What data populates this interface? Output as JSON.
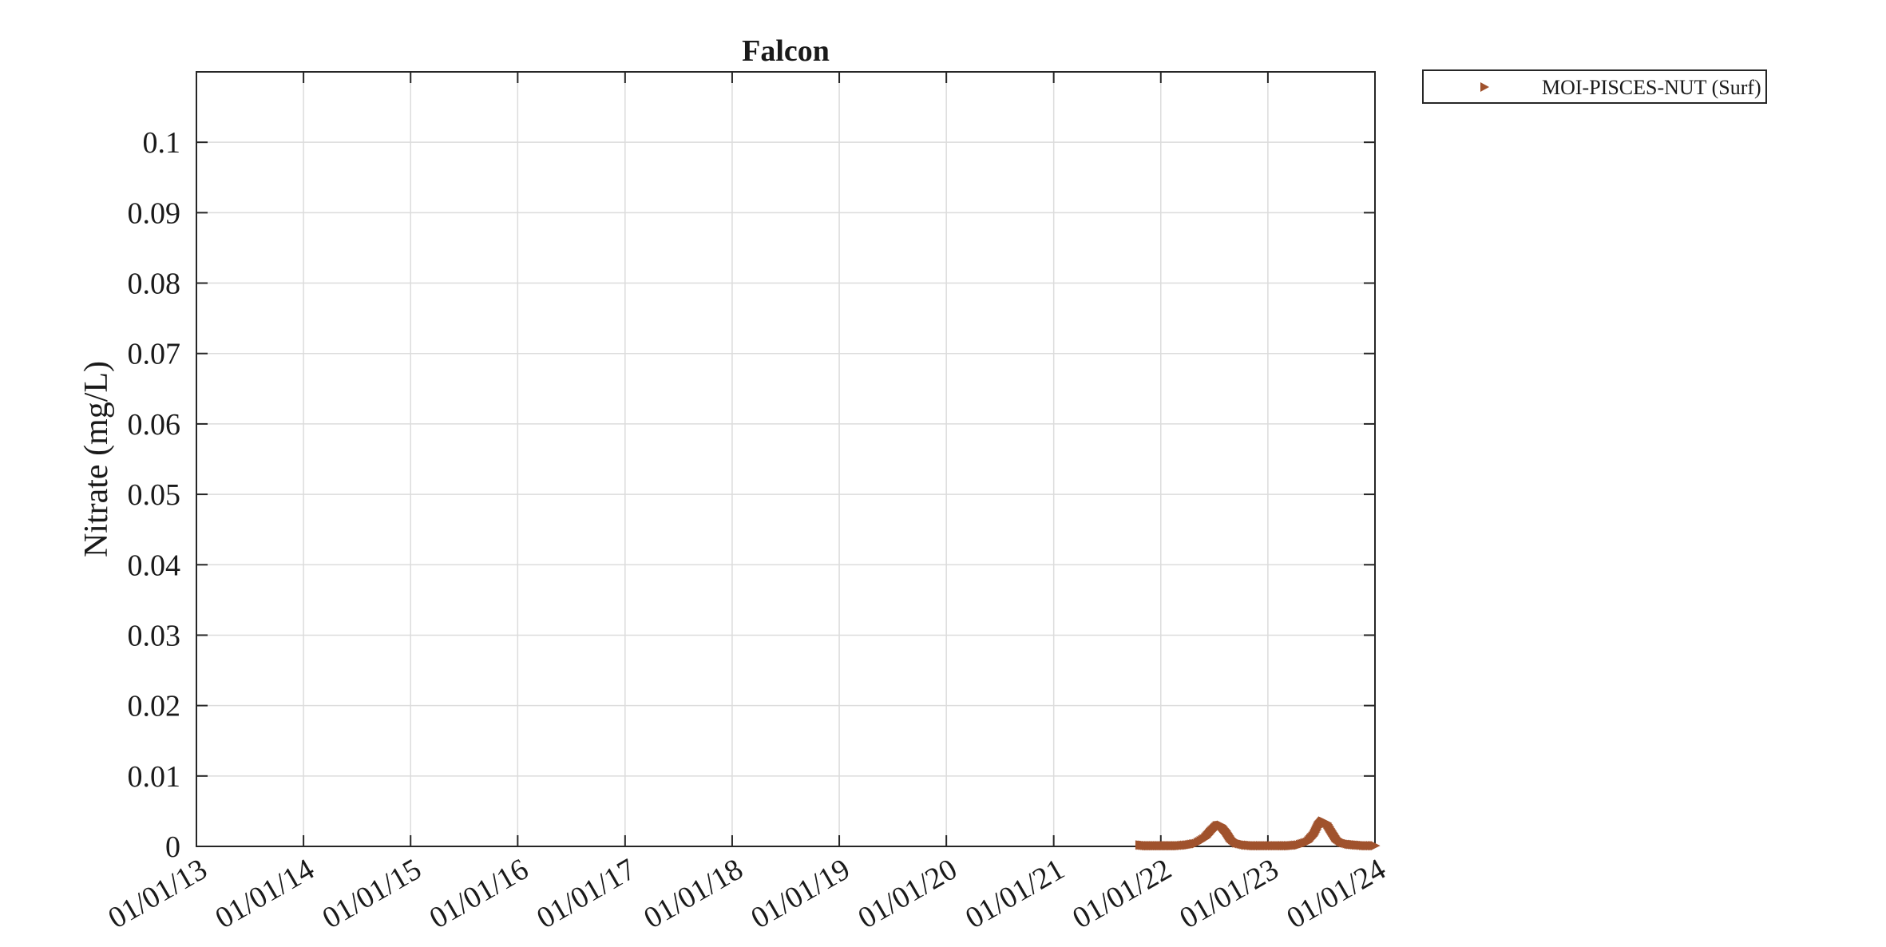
{
  "chart_data": {
    "type": "scatter",
    "title": "Falcon",
    "xlabel": "",
    "ylabel": "Nitrate (mg/L)",
    "x_tick_labels": [
      "01/01/13",
      "01/01/14",
      "01/01/15",
      "01/01/16",
      "01/01/17",
      "01/01/18",
      "01/01/19",
      "01/01/20",
      "01/01/21",
      "01/01/22",
      "01/01/23",
      "01/01/24"
    ],
    "x_tick_dates": [
      "2013-01-01",
      "2014-01-01",
      "2015-01-01",
      "2016-01-01",
      "2017-01-01",
      "2018-01-01",
      "2019-01-01",
      "2020-01-01",
      "2021-01-01",
      "2022-01-01",
      "2023-01-01",
      "2024-01-01"
    ],
    "xlim": [
      "2013-01-01",
      "2024-01-01"
    ],
    "y_tick_labels": [
      "0",
      "0.01",
      "0.02",
      "0.03",
      "0.04",
      "0.05",
      "0.06",
      "0.07",
      "0.08",
      "0.09",
      "0.1"
    ],
    "ylim": [
      0,
      0.11
    ],
    "grid": true,
    "legend_position": "outside-top-right",
    "series": [
      {
        "name": "MOI-PISCES-NUT (Surf)",
        "color": "#a0522d",
        "marker": "triangle-right",
        "x": [
          "2021-10-20",
          "2021-11-15",
          "2021-12-10",
          "2022-01-05",
          "2022-02-01",
          "2022-03-01",
          "2022-04-01",
          "2022-05-01",
          "2022-06-01",
          "2022-06-20",
          "2022-07-10",
          "2022-07-25",
          "2022-08-10",
          "2022-08-25",
          "2022-09-15",
          "2022-10-15",
          "2022-11-15",
          "2022-12-15",
          "2023-01-15",
          "2023-02-15",
          "2023-03-15",
          "2023-04-15",
          "2023-05-15",
          "2023-06-05",
          "2023-06-20",
          "2023-07-05",
          "2023-07-20",
          "2023-08-05",
          "2023-08-20",
          "2023-09-10",
          "2023-10-05",
          "2023-11-01",
          "2023-12-01",
          "2023-12-31"
        ],
        "values": [
          0.0002,
          0.0001,
          0.0001,
          0.0001,
          0.0001,
          0.0001,
          0.0002,
          0.0004,
          0.0012,
          0.0021,
          0.0029,
          0.003,
          0.0022,
          0.0012,
          0.0005,
          0.0002,
          0.0001,
          0.0001,
          0.0001,
          0.0001,
          0.0001,
          0.0002,
          0.0006,
          0.0016,
          0.0029,
          0.0036,
          0.0033,
          0.0022,
          0.0012,
          0.0006,
          0.0003,
          0.0002,
          0.0001,
          0.0001
        ]
      }
    ]
  }
}
